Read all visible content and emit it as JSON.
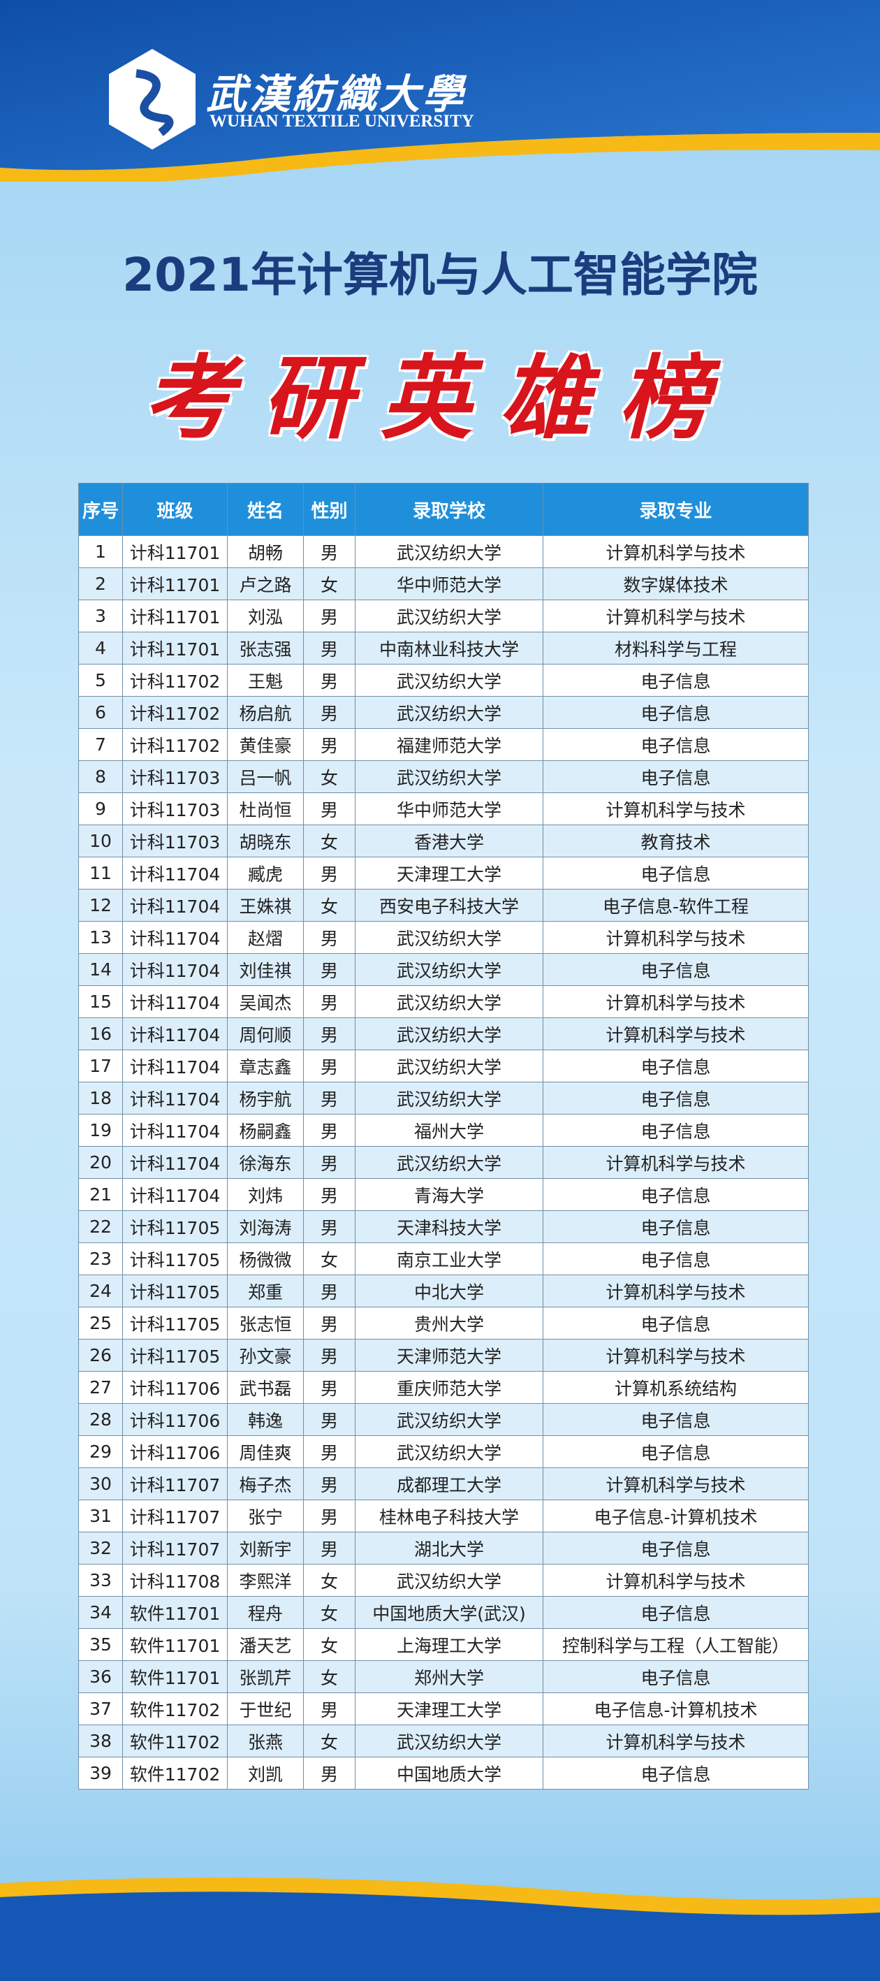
{
  "header": {
    "logo_cn": "武漢紡織大學",
    "logo_en": "WUHAN TEXTILE UNIVERSITY"
  },
  "title": "2021年计算机与人工智能学院",
  "subtitle": "考研英雄榜",
  "table": {
    "columns": [
      "序号",
      "班级",
      "姓名",
      "性别",
      "录取学校",
      "录取专业"
    ],
    "rows": [
      [
        "1",
        "计科11701",
        "胡畅",
        "男",
        "武汉纺织大学",
        "计算机科学与技术"
      ],
      [
        "2",
        "计科11701",
        "卢之路",
        "女",
        "华中师范大学",
        "数字媒体技术"
      ],
      [
        "3",
        "计科11701",
        "刘泓",
        "男",
        "武汉纺织大学",
        "计算机科学与技术"
      ],
      [
        "4",
        "计科11701",
        "张志强",
        "男",
        "中南林业科技大学",
        "材料科学与工程"
      ],
      [
        "5",
        "计科11702",
        "王魁",
        "男",
        "武汉纺织大学",
        "电子信息"
      ],
      [
        "6",
        "计科11702",
        "杨启航",
        "男",
        "武汉纺织大学",
        "电子信息"
      ],
      [
        "7",
        "计科11702",
        "黄佳豪",
        "男",
        "福建师范大学",
        "电子信息"
      ],
      [
        "8",
        "计科11703",
        "吕一帆",
        "女",
        "武汉纺织大学",
        "电子信息"
      ],
      [
        "9",
        "计科11703",
        "杜尚恒",
        "男",
        "华中师范大学",
        "计算机科学与技术"
      ],
      [
        "10",
        "计科11703",
        "胡晓东",
        "女",
        "香港大学",
        "教育技术"
      ],
      [
        "11",
        "计科11704",
        "臧虎",
        "男",
        "天津理工大学",
        "电子信息"
      ],
      [
        "12",
        "计科11704",
        "王姝祺",
        "女",
        "西安电子科技大学",
        "电子信息-软件工程"
      ],
      [
        "13",
        "计科11704",
        "赵熠",
        "男",
        "武汉纺织大学",
        "计算机科学与技术"
      ],
      [
        "14",
        "计科11704",
        "刘佳祺",
        "男",
        "武汉纺织大学",
        "电子信息"
      ],
      [
        "15",
        "计科11704",
        "吴闻杰",
        "男",
        "武汉纺织大学",
        "计算机科学与技术"
      ],
      [
        "16",
        "计科11704",
        "周何顺",
        "男",
        "武汉纺织大学",
        "计算机科学与技术"
      ],
      [
        "17",
        "计科11704",
        "章志鑫",
        "男",
        "武汉纺织大学",
        "电子信息"
      ],
      [
        "18",
        "计科11704",
        "杨宇航",
        "男",
        "武汉纺织大学",
        "电子信息"
      ],
      [
        "19",
        "计科11704",
        "杨嗣鑫",
        "男",
        "福州大学",
        "电子信息"
      ],
      [
        "20",
        "计科11704",
        "徐海东",
        "男",
        "武汉纺织大学",
        "计算机科学与技术"
      ],
      [
        "21",
        "计科11704",
        "刘炜",
        "男",
        "青海大学",
        "电子信息"
      ],
      [
        "22",
        "计科11705",
        "刘海涛",
        "男",
        "天津科技大学",
        "电子信息"
      ],
      [
        "23",
        "计科11705",
        "杨微微",
        "女",
        "南京工业大学",
        "电子信息"
      ],
      [
        "24",
        "计科11705",
        "郑重",
        "男",
        "中北大学",
        "计算机科学与技术"
      ],
      [
        "25",
        "计科11705",
        "张志恒",
        "男",
        "贵州大学",
        "电子信息"
      ],
      [
        "26",
        "计科11705",
        "孙文豪",
        "男",
        "天津师范大学",
        "计算机科学与技术"
      ],
      [
        "27",
        "计科11706",
        "武书磊",
        "男",
        "重庆师范大学",
        "计算机系统结构"
      ],
      [
        "28",
        "计科11706",
        "韩逸",
        "男",
        "武汉纺织大学",
        "电子信息"
      ],
      [
        "29",
        "计科11706",
        "周佳爽",
        "男",
        "武汉纺织大学",
        "电子信息"
      ],
      [
        "30",
        "计科11707",
        "梅子杰",
        "男",
        "成都理工大学",
        "计算机科学与技术"
      ],
      [
        "31",
        "计科11707",
        "张宁",
        "男",
        "桂林电子科技大学",
        "电子信息-计算机技术"
      ],
      [
        "32",
        "计科11707",
        "刘新宇",
        "男",
        "湖北大学",
        "电子信息"
      ],
      [
        "33",
        "计科11708",
        "李熙洋",
        "女",
        "武汉纺织大学",
        "计算机科学与技术"
      ],
      [
        "34",
        "软件11701",
        "程舟",
        "女",
        "中国地质大学(武汉)",
        "电子信息"
      ],
      [
        "35",
        "软件11701",
        "潘天艺",
        "女",
        "上海理工大学",
        "控制科学与工程（人工智能）"
      ],
      [
        "36",
        "软件11701",
        "张凯芹",
        "女",
        "郑州大学",
        "电子信息"
      ],
      [
        "37",
        "软件11702",
        "于世纪",
        "男",
        "天津理工大学",
        "电子信息-计算机技术"
      ],
      [
        "38",
        "软件11702",
        "张燕",
        "女",
        "武汉纺织大学",
        "计算机科学与技术"
      ],
      [
        "39",
        "软件11702",
        "刘凯",
        "男",
        "中国地质大学",
        "电子信息"
      ]
    ]
  }
}
